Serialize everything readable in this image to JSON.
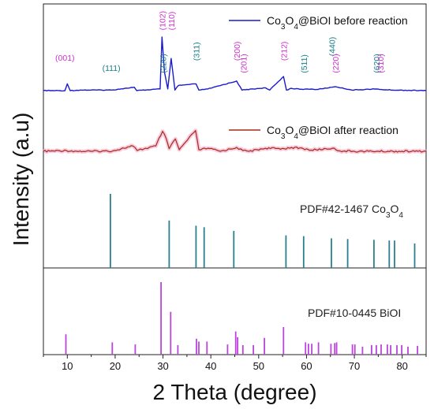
{
  "chart_data": {
    "type": "line",
    "xlabel": "2 Theta (degree)",
    "ylabel": "Intensity (a.u)",
    "xlim": [
      5,
      85
    ],
    "xticks": [
      10,
      20,
      30,
      40,
      50,
      60,
      70,
      80
    ],
    "xtick_labels": [
      "10",
      "20",
      "30",
      "40",
      "50",
      "60",
      "70",
      "80"
    ],
    "series": [
      {
        "name_parts": [
          "Co",
          "3",
          "O",
          "4",
          "@BiOI before reaction"
        ],
        "color": "#1a1acc",
        "baseline": 0.05,
        "x": [
          5,
          9.5,
          10.0,
          10.6,
          13,
          19.2,
          24.0,
          24.5,
          29.4,
          29.8,
          30.3,
          31.0,
          31.7,
          32.5,
          33.2,
          36.9,
          37.5,
          39.4,
          45.4,
          46.5,
          51.4,
          52.3,
          55.2,
          55.8,
          56.8,
          59.3,
          60.2,
          62.1,
          65.3,
          66.1,
          69.5,
          74.6,
          75.3,
          78,
          85
        ],
        "y": [
          0.05,
          0.05,
          0.17,
          0.05,
          0.06,
          0.06,
          0.11,
          0.05,
          0.08,
          1.0,
          0.38,
          0.08,
          0.62,
          0.06,
          0.14,
          0.17,
          0.06,
          0.08,
          0.22,
          0.06,
          0.1,
          0.06,
          0.3,
          0.06,
          0.09,
          0.07,
          0.08,
          0.07,
          0.11,
          0.12,
          0.06,
          0.08,
          0.07,
          0.06,
          0.05
        ]
      },
      {
        "name_parts": [
          "Co",
          "3",
          "O",
          "4",
          "@BiOI after reaction"
        ],
        "color": "#a52a1a",
        "baseline": 0.08,
        "x": [
          5,
          9.8,
          12,
          15,
          19.5,
          23.7,
          24.6,
          28.5,
          29.9,
          30.7,
          31.3,
          32.6,
          33.4,
          36.8,
          37.5,
          39.4,
          42.0,
          45.4,
          46.7,
          48,
          51.4,
          55.3,
          56.9,
          59.3,
          61.0,
          65.4,
          67,
          70,
          75,
          80,
          85
        ],
        "y": [
          0.08,
          0.1,
          0.08,
          0.08,
          0.09,
          0.22,
          0.1,
          0.22,
          0.6,
          0.4,
          0.15,
          0.4,
          0.12,
          0.62,
          0.12,
          0.16,
          0.08,
          0.18,
          0.1,
          0.08,
          0.16,
          0.15,
          0.18,
          0.15,
          0.11,
          0.16,
          0.09,
          0.08,
          0.08,
          0.08,
          0.08
        ]
      }
    ],
    "hkl_labels": [
      {
        "text": "(001)",
        "x": 9.5,
        "color": "pink",
        "rotate": false,
        "level": 0.58
      },
      {
        "text": "(111)",
        "x": 19.2,
        "color": "teal",
        "rotate": false,
        "level": 0.4
      },
      {
        "text": "(220)",
        "x": 30.0,
        "color": "teal",
        "rotate": true,
        "level": 0.36
      },
      {
        "text": "(102)",
        "x": 29.8,
        "color": "pink",
        "rotate": true,
        "level": 1.12
      },
      {
        "text": "(110)",
        "x": 31.7,
        "color": "pink",
        "rotate": true,
        "level": 1.12
      },
      {
        "text": "(311)",
        "x": 36.9,
        "color": "teal",
        "rotate": true,
        "level": 0.58
      },
      {
        "text": "(200)",
        "x": 45.4,
        "color": "pink",
        "rotate": true,
        "level": 0.58
      },
      {
        "text": "(201)",
        "x": 46.8,
        "color": "pink",
        "rotate": true,
        "level": 0.36
      },
      {
        "text": "(212)",
        "x": 55.2,
        "color": "pink",
        "rotate": true,
        "level": 0.58
      },
      {
        "text": "(511)",
        "x": 59.4,
        "color": "teal",
        "rotate": true,
        "level": 0.36
      },
      {
        "text": "(440)",
        "x": 65.3,
        "color": "teal",
        "rotate": true,
        "level": 0.66
      },
      {
        "text": "(220)",
        "x": 66.0,
        "color": "pink",
        "rotate": true,
        "level": 0.36
      },
      {
        "text": "(620)",
        "x": 74.6,
        "color": "teal",
        "rotate": true,
        "level": 0.36
      },
      {
        "text": "(310)",
        "x": 75.4,
        "color": "pink",
        "rotate": true,
        "level": 0.36
      }
    ],
    "reference_patterns": [
      {
        "label_parts": [
          "PDF#42-1467 Co",
          "3",
          "O",
          "4"
        ],
        "color": "#2a8090",
        "x": [
          19.0,
          31.3,
          36.9,
          38.6,
          44.8,
          55.7,
          59.4,
          65.2,
          68.6,
          74.1,
          77.3,
          78.4,
          82.6
        ],
        "y": [
          1.0,
          0.64,
          0.57,
          0.55,
          0.5,
          0.44,
          0.43,
          0.4,
          0.39,
          0.38,
          0.37,
          0.37,
          0.33
        ]
      },
      {
        "label": "PDF#10-0445 BiOI",
        "color": "#bb44dd",
        "x": [
          9.7,
          19.4,
          24.2,
          29.6,
          31.6,
          33.1,
          37.0,
          37.5,
          39.2,
          43.5,
          45.2,
          45.6,
          46.7,
          48.9,
          51.2,
          55.2,
          59.8,
          60.4,
          61.1,
          62.5,
          65.1,
          65.9,
          66.3,
          69.6,
          70.1,
          71.7,
          73.6,
          74.6,
          75.6,
          76.9,
          77.6,
          78.9,
          79.9,
          81.2,
          83.2
        ],
        "y": [
          0.28,
          0.17,
          0.14,
          1.0,
          0.59,
          0.13,
          0.22,
          0.18,
          0.18,
          0.14,
          0.32,
          0.24,
          0.13,
          0.13,
          0.23,
          0.38,
          0.17,
          0.15,
          0.15,
          0.17,
          0.15,
          0.16,
          0.17,
          0.14,
          0.14,
          0.11,
          0.13,
          0.13,
          0.14,
          0.14,
          0.13,
          0.13,
          0.13,
          0.11,
          0.12
        ]
      }
    ],
    "grid": false,
    "legend_position": "top-right"
  }
}
